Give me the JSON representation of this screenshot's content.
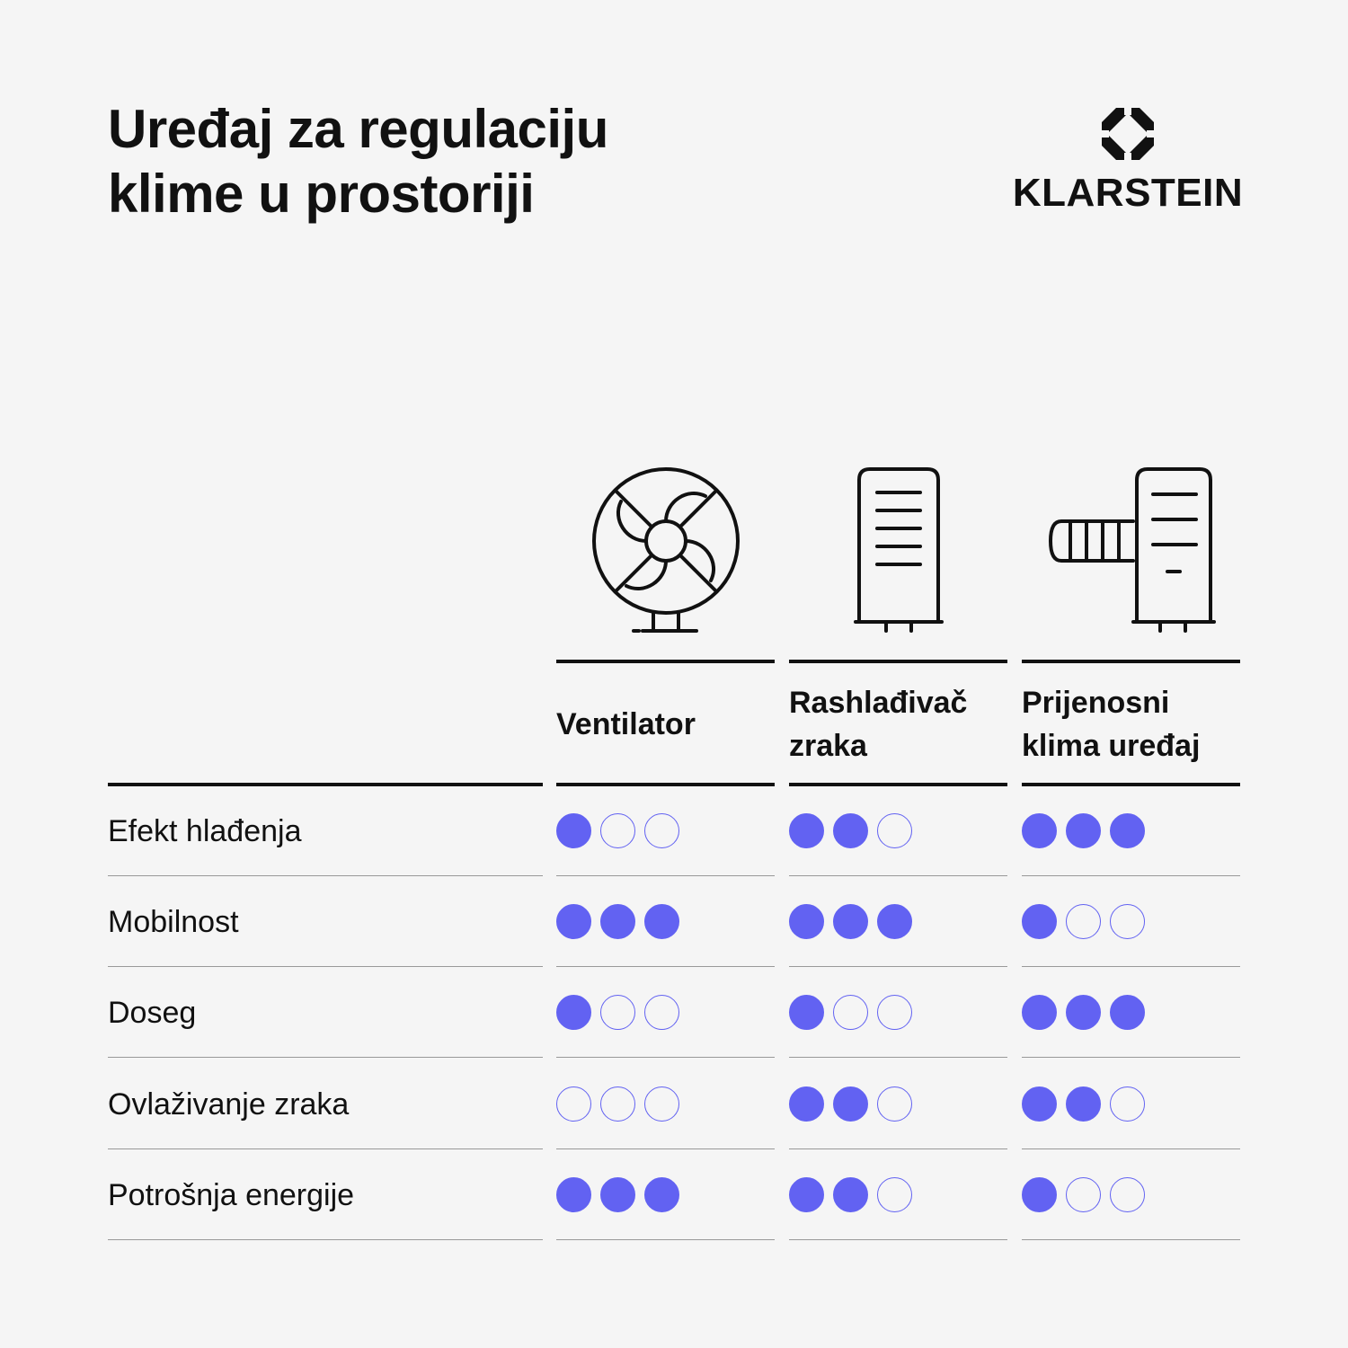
{
  "title_line1": "Uređaj za regulaciju",
  "title_line2": "klime u prostoriji",
  "brand": "KLARSTEIN",
  "accent_color": "#6262f2",
  "columns": [
    {
      "icon": "fan-icon",
      "label_line1": "Ventilator",
      "label_line2": ""
    },
    {
      "icon": "air-cooler-icon",
      "label_line1": "Rashlađivač",
      "label_line2": "zraka"
    },
    {
      "icon": "portable-ac-icon",
      "label_line1": "Prijenosni",
      "label_line2": "klima uređaj"
    }
  ],
  "rows": [
    {
      "label": "Efekt hlađenja",
      "ratings": [
        1,
        2,
        3
      ]
    },
    {
      "label": "Mobilnost",
      "ratings": [
        3,
        3,
        1
      ]
    },
    {
      "label": "Doseg",
      "ratings": [
        1,
        1,
        3
      ]
    },
    {
      "label": "Ovlaživanje zraka",
      "ratings": [
        0,
        2,
        2
      ]
    },
    {
      "label": "Potrošnja energije",
      "ratings": [
        3,
        2,
        1
      ]
    }
  ],
  "rating_max": 3
}
